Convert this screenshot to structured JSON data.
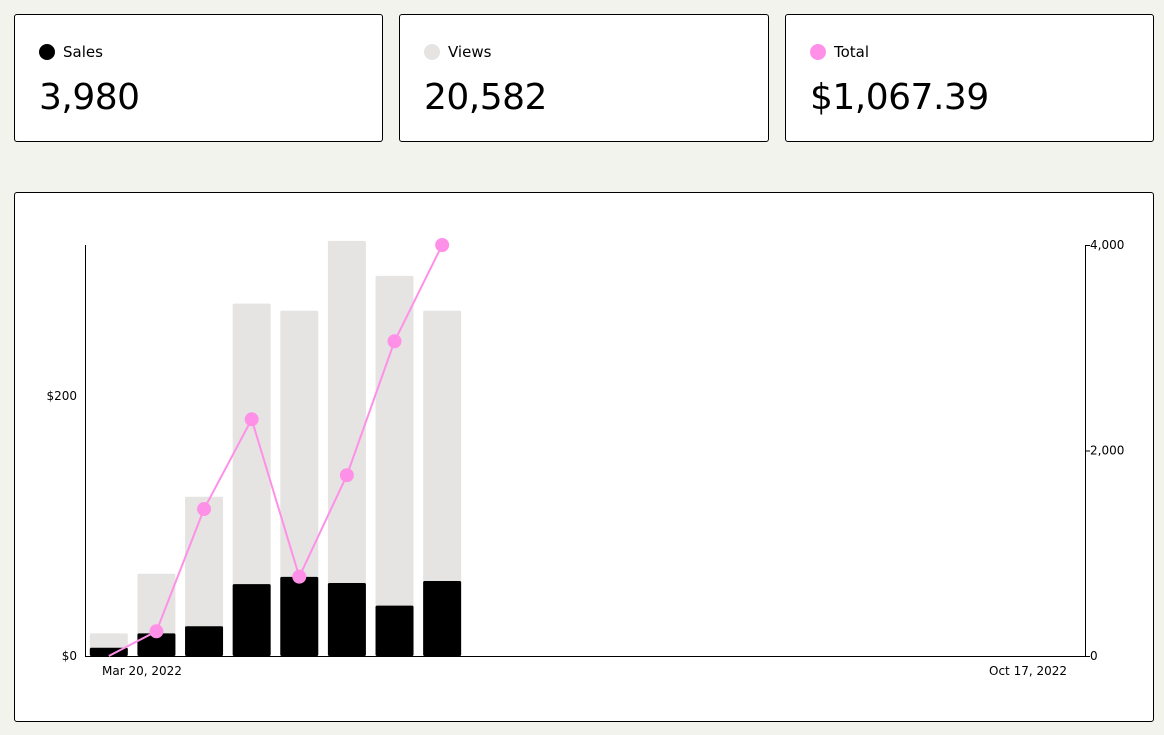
{
  "stats": [
    {
      "label": "Sales",
      "value": "3,980",
      "color": "#000000"
    },
    {
      "label": "Views",
      "value": "20,582",
      "color": "#e5e4e2"
    },
    {
      "label": "Total",
      "value": "$1,067.39",
      "color": "#ff90e8"
    }
  ],
  "chart_data": {
    "type": "bar",
    "x_start_label": "Mar 20, 2022",
    "x_end_label": "Oct 17, 2022",
    "left_axis": {
      "ticks": [
        {
          "value": 0,
          "label": "$0"
        },
        {
          "value": 200,
          "label": "$200"
        }
      ],
      "ylim": [
        0,
        316
      ]
    },
    "right_axis": {
      "ticks": [
        {
          "value": 0,
          "label": "0"
        },
        {
          "value": 2000,
          "label": "2,000"
        },
        {
          "value": 4000,
          "label": "4,000"
        }
      ],
      "ylim": [
        0,
        4000
      ]
    },
    "slots_total": 21,
    "series": [
      {
        "name": "Views",
        "kind": "bar",
        "axis": "right",
        "color": "#e5e4e2",
        "values": [
          220,
          800,
          1550,
          3430,
          3360,
          4040,
          3700,
          3360
        ]
      },
      {
        "name": "Sales",
        "kind": "bar",
        "axis": "right",
        "color": "#000000",
        "values": [
          80,
          220,
          290,
          700,
          770,
          710,
          490,
          730
        ]
      },
      {
        "name": "Total",
        "kind": "line",
        "axis": "left",
        "color": "#ff90e8",
        "values": [
          0,
          19,
          113,
          182,
          61,
          139,
          242,
          316
        ]
      }
    ]
  }
}
